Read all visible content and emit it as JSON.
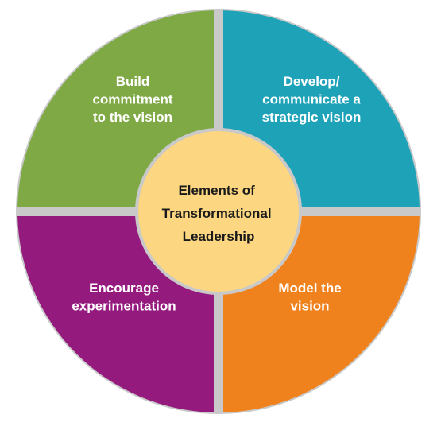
{
  "center": {
    "lines": [
      "Elements of",
      "Transformational",
      "Leadership"
    ],
    "color": "#FCD681"
  },
  "quadrants": [
    {
      "id": "top-left",
      "lines": [
        "Build",
        "commitment",
        "to the vision"
      ],
      "color": "#7FA944"
    },
    {
      "id": "top-right",
      "lines": [
        "Develop/",
        "communicate a",
        "strategic vision"
      ],
      "color": "#1DA2B8"
    },
    {
      "id": "bottom-left",
      "lines": [
        "Encourage",
        "experimentation"
      ],
      "color": "#951A7E"
    },
    {
      "id": "bottom-right",
      "lines": [
        "Model the",
        "vision"
      ],
      "color": "#F0821E"
    }
  ],
  "divider_color": "#C9C9C9"
}
